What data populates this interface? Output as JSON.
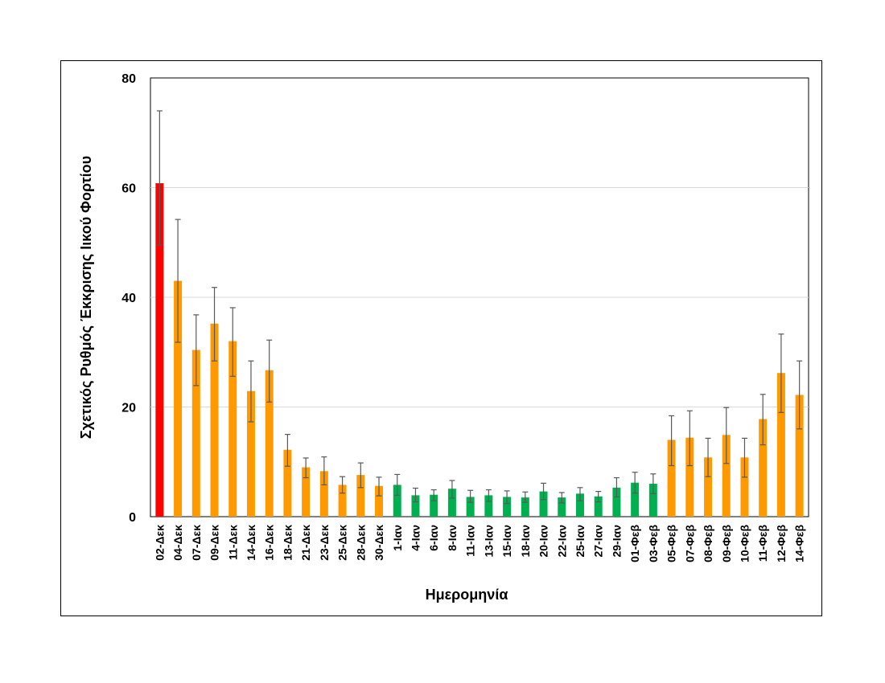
{
  "chart_data": {
    "type": "bar",
    "title": "",
    "xlabel": "Ημερομηνία",
    "ylabel": "Σχετικός Ρυθμός Έκκρισης Ιικού Φορτίου",
    "ylim": [
      0,
      80
    ],
    "yticks": [
      0,
      20,
      40,
      60,
      80
    ],
    "grid": true,
    "legend": "none",
    "colors": {
      "red": "#FF0000",
      "orange": "#FF9900",
      "green": "#00B050",
      "error": "#595959",
      "grid": "#D9D9D9"
    },
    "categories": [
      "02-Δεκ",
      "04-Δεκ",
      "07-Δεκ",
      "09-Δεκ",
      "11-Δεκ",
      "14-Δεκ",
      "16-Δεκ",
      "18-Δεκ",
      "21-Δεκ",
      "23-Δεκ",
      "25-Δεκ",
      "28-Δεκ",
      "30-Δεκ",
      "1-Ιαν",
      "4-Ιαν",
      "6-Ιαν",
      "8-Ιαν",
      "11-Ιαν",
      "13-Ιαν",
      "15-Ιαν",
      "18-Ιαν",
      "20-Ιαν",
      "22-Ιαν",
      "25-Ιαν",
      "27-Ιαν",
      "29-Ιαν",
      "01-Φεβ",
      "03-Φεβ",
      "05-Φεβ",
      "07-Φεβ",
      "08-Φεβ",
      "09-Φεβ",
      "10-Φεβ",
      "11-Φεβ",
      "12-Φεβ",
      "14-Φεβ"
    ],
    "values": [
      60.8,
      43.0,
      30.4,
      35.2,
      32.0,
      22.9,
      26.7,
      12.2,
      9.0,
      8.3,
      5.8,
      7.6,
      5.6,
      5.8,
      3.9,
      4.0,
      5.1,
      3.6,
      3.9,
      3.6,
      3.5,
      4.6,
      3.5,
      4.2,
      3.7,
      5.3,
      6.2,
      6.0,
      14.0,
      14.4,
      10.8,
      14.9,
      10.8,
      17.8,
      26.2,
      22.2
    ],
    "error_low": [
      49.5,
      31.8,
      23.9,
      28.4,
      25.6,
      17.3,
      20.9,
      9.2,
      7.1,
      5.8,
      4.3,
      5.3,
      3.8,
      3.9,
      2.7,
      2.9,
      3.4,
      2.6,
      2.8,
      2.4,
      2.6,
      3.1,
      2.5,
      2.9,
      2.7,
      3.6,
      4.3,
      4.2,
      9.3,
      9.3,
      7.3,
      9.7,
      7.2,
      13.1,
      19.0,
      16.0
    ],
    "error_high": [
      74.0,
      54.2,
      36.8,
      41.8,
      38.1,
      28.4,
      32.2,
      15.0,
      10.7,
      10.9,
      7.3,
      9.8,
      7.2,
      7.7,
      5.2,
      4.9,
      6.6,
      4.8,
      4.9,
      4.7,
      4.5,
      6.1,
      4.4,
      5.3,
      4.6,
      7.1,
      8.1,
      7.8,
      18.4,
      19.3,
      14.3,
      19.9,
      14.3,
      22.3,
      33.3,
      28.4
    ],
    "bar_colors": [
      "red",
      "orange",
      "orange",
      "orange",
      "orange",
      "orange",
      "orange",
      "orange",
      "orange",
      "orange",
      "orange",
      "orange",
      "orange",
      "green",
      "green",
      "green",
      "green",
      "green",
      "green",
      "green",
      "green",
      "green",
      "green",
      "green",
      "green",
      "green",
      "green",
      "green",
      "orange",
      "orange",
      "orange",
      "orange",
      "orange",
      "orange",
      "orange",
      "orange"
    ]
  }
}
